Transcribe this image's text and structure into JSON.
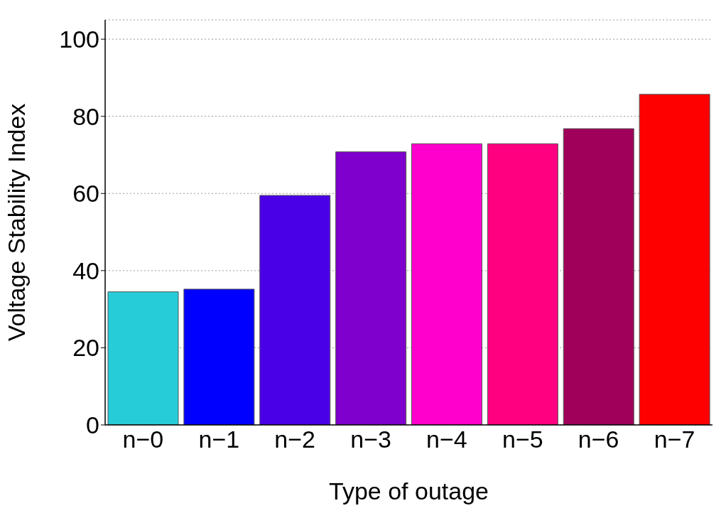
{
  "chart_data": {
    "type": "bar",
    "xlabel": "Type of outage",
    "ylabel": "Voltage Stability Index",
    "categories": [
      "n−0",
      "n−1",
      "n−2",
      "n−3",
      "n−4",
      "n−5",
      "n−6",
      "n−7"
    ],
    "values": [
      34.5,
      35.2,
      59.5,
      70.8,
      72.9,
      72.9,
      76.8,
      85.7
    ],
    "colors": [
      "#26ccd8",
      "#0000ff",
      "#4a00e6",
      "#7f00cc",
      "#ff00cc",
      "#ff0080",
      "#a0005a",
      "#ff0000"
    ],
    "ylim": [
      0,
      105
    ],
    "yticks": [
      0,
      20,
      40,
      60,
      80,
      100
    ],
    "grid": "y"
  }
}
